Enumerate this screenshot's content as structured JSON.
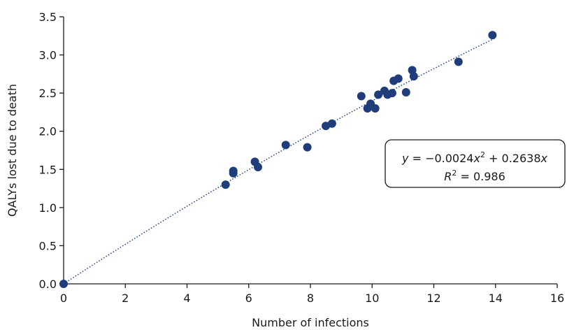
{
  "chart_data": {
    "type": "scatter",
    "title": "",
    "xlabel": "Number of infections",
    "ylabel": "QALYs lost due to death",
    "xlim": [
      0,
      16
    ],
    "ylim": [
      0,
      3.5
    ],
    "x_ticks": [
      "0",
      "2",
      "4",
      "6",
      "8",
      "10",
      "12",
      "14",
      "16"
    ],
    "y_ticks": [
      "0.0",
      "0.5",
      "1.0",
      "1.5",
      "2.0",
      "2.5",
      "3.0",
      "3.5"
    ],
    "grid": false,
    "point_color": "#1f3d7a",
    "trendline": {
      "style": "dotted",
      "color": "#1f3d7a",
      "a": -0.0024,
      "b": 0.2638
    },
    "annotation": {
      "equation": {
        "y": "y",
        "eq1": " = −0.0024",
        "x1": "x",
        "sup": "2",
        "eq2": " + 0.2638",
        "x2": "x"
      },
      "r2": {
        "r": "R",
        "sup": "2",
        "val": " = 0.986"
      }
    },
    "points": [
      {
        "x": 0.0,
        "y": 0.0
      },
      {
        "x": 5.25,
        "y": 1.3
      },
      {
        "x": 5.5,
        "y": 1.45
      },
      {
        "x": 5.5,
        "y": 1.48
      },
      {
        "x": 6.2,
        "y": 1.6
      },
      {
        "x": 6.3,
        "y": 1.53
      },
      {
        "x": 7.2,
        "y": 1.82
      },
      {
        "x": 7.9,
        "y": 1.79
      },
      {
        "x": 8.5,
        "y": 2.07
      },
      {
        "x": 8.7,
        "y": 2.1
      },
      {
        "x": 9.65,
        "y": 2.46
      },
      {
        "x": 9.85,
        "y": 2.3
      },
      {
        "x": 9.95,
        "y": 2.36
      },
      {
        "x": 10.1,
        "y": 2.3
      },
      {
        "x": 10.2,
        "y": 2.48
      },
      {
        "x": 10.4,
        "y": 2.53
      },
      {
        "x": 10.5,
        "y": 2.48
      },
      {
        "x": 10.65,
        "y": 2.5
      },
      {
        "x": 10.7,
        "y": 2.66
      },
      {
        "x": 10.85,
        "y": 2.69
      },
      {
        "x": 11.1,
        "y": 2.51
      },
      {
        "x": 11.3,
        "y": 2.8
      },
      {
        "x": 11.35,
        "y": 2.72
      },
      {
        "x": 12.8,
        "y": 2.91
      },
      {
        "x": 13.9,
        "y": 3.26
      }
    ]
  }
}
